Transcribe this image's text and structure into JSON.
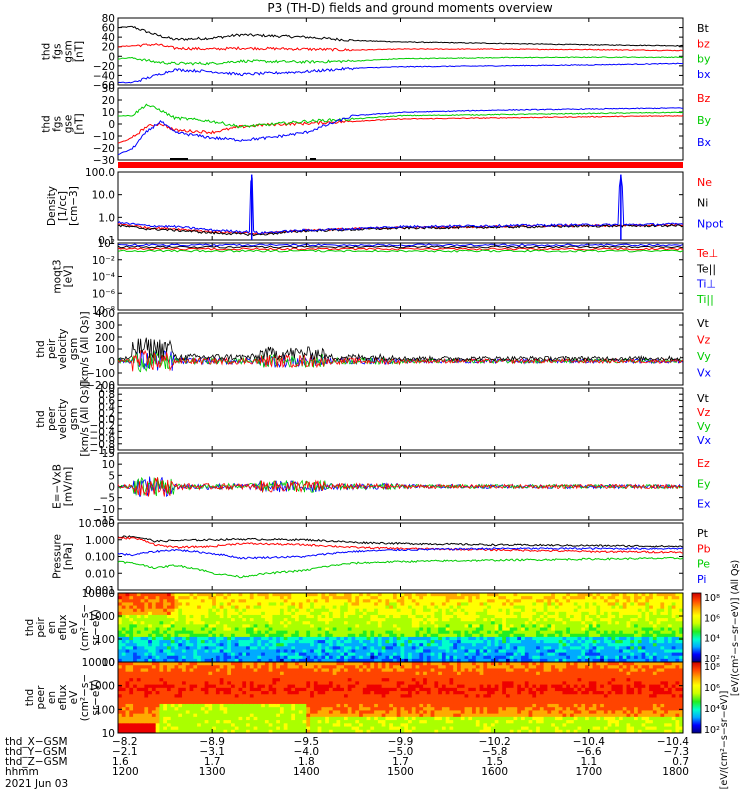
{
  "title": "P3 (TH-D) fields and ground moments overview",
  "colors": {
    "black": "#000000",
    "red": "#ff0000",
    "green": "#00cc00",
    "blue": "#0000ff"
  },
  "chart_data": [
    {
      "type": "line",
      "panel": "fgs-gsm",
      "ylabel_lines": [
        "thd",
        "fgs",
        "gsm",
        "[nT]"
      ],
      "ylim": [
        -60,
        80
      ],
      "yticks": [
        "80",
        "60",
        "40",
        "20",
        "0",
        "−20",
        "−40",
        "−60"
      ],
      "series": [
        {
          "name": "Bt",
          "color": "#000000",
          "x": [
            1200,
            1215,
            1240,
            1260,
            1300,
            1330,
            1400,
            1450,
            1500,
            1600,
            1700,
            1800
          ],
          "y": [
            60,
            62,
            45,
            35,
            38,
            45,
            40,
            33,
            30,
            27,
            24,
            22
          ]
        },
        {
          "name": "bz",
          "color": "#ff0000",
          "x": [
            1200,
            1215,
            1240,
            1260,
            1300,
            1330,
            1400,
            1450,
            1500,
            1600,
            1700,
            1800
          ],
          "y": [
            20,
            22,
            25,
            17,
            15,
            17,
            15,
            13,
            15,
            15,
            14,
            12
          ]
        },
        {
          "name": "by",
          "color": "#00cc00",
          "x": [
            1200,
            1215,
            1240,
            1260,
            1300,
            1330,
            1400,
            1450,
            1500,
            1600,
            1700,
            1800
          ],
          "y": [
            -5,
            -3,
            -12,
            -15,
            -15,
            -10,
            -12,
            -10,
            -5,
            -3,
            -2,
            -2
          ]
        },
        {
          "name": "bx",
          "color": "#0000ff",
          "x": [
            1200,
            1215,
            1240,
            1260,
            1300,
            1330,
            1400,
            1450,
            1500,
            1600,
            1700,
            1800
          ],
          "y": [
            -55,
            -55,
            -40,
            -28,
            -32,
            -38,
            -32,
            -25,
            -22,
            -20,
            -18,
            -15
          ]
        }
      ]
    },
    {
      "type": "line",
      "panel": "fgs-gse",
      "ylabel_lines": [
        "thd",
        "fgs",
        "gse",
        "[nT]"
      ],
      "ylim": [
        -35,
        30
      ],
      "yticks": [
        "30",
        "20",
        "10",
        "0",
        "−10",
        "−20",
        "−30"
      ],
      "series": [
        {
          "name": "Bz",
          "color": "#ff0000",
          "x": [
            1200,
            1215,
            1230,
            1245,
            1260,
            1300,
            1330,
            1360,
            1400,
            1450,
            1500,
            1600,
            1700,
            1800
          ],
          "y": [
            -20,
            -15,
            -5,
            -2,
            -8,
            -10,
            -5,
            -3,
            -2,
            0,
            2,
            3,
            4,
            5
          ]
        },
        {
          "name": "By",
          "color": "#00cc00",
          "x": [
            1200,
            1215,
            1230,
            1245,
            1260,
            1300,
            1330,
            1360,
            1400,
            1450,
            1500,
            1600,
            1700,
            1800
          ],
          "y": [
            5,
            5,
            15,
            10,
            3,
            0,
            -5,
            -3,
            0,
            2,
            5,
            6,
            7,
            8
          ]
        },
        {
          "name": "Bx",
          "color": "#0000ff",
          "x": [
            1200,
            1215,
            1230,
            1245,
            1260,
            1300,
            1330,
            1360,
            1400,
            1450,
            1500,
            1600,
            1700,
            1800
          ],
          "y": [
            -30,
            -25,
            -10,
            0,
            -10,
            -15,
            -17,
            -15,
            -10,
            5,
            8,
            10,
            11,
            12
          ]
        }
      ]
    },
    {
      "type": "line",
      "panel": "density",
      "ylabel_lines": [
        "Density",
        "[1/cc]",
        "[cm−3]"
      ],
      "scale": "log",
      "ylim": [
        0.1,
        200
      ],
      "yticks": [
        "100.0",
        "10.0",
        "1.0",
        "0.1"
      ],
      "series": [
        {
          "name": "Ne",
          "color": "#ff0000",
          "x": [
            1200,
            1230,
            1260,
            1300,
            1350,
            1400,
            1450,
            1500,
            1600,
            1700,
            1800
          ],
          "y": [
            0.6,
            0.4,
            0.35,
            0.25,
            0.2,
            0.3,
            0.35,
            0.4,
            0.45,
            0.5,
            0.55
          ]
        },
        {
          "name": "Ni",
          "color": "#000000",
          "x": [
            1200,
            1230,
            1260,
            1300,
            1350,
            1400,
            1450,
            1500,
            1600,
            1700,
            1800
          ],
          "y": [
            0.5,
            0.35,
            0.3,
            0.22,
            0.18,
            0.28,
            0.32,
            0.38,
            0.42,
            0.48,
            0.5
          ]
        },
        {
          "name": "Npot",
          "color": "#0000ff",
          "x": [
            1200,
            1230,
            1260,
            1300,
            1340,
            1342,
            1344,
            1350,
            1400,
            1450,
            1500,
            1600,
            1700,
            1732,
            1734,
            1736,
            1800
          ],
          "y": [
            0.7,
            0.5,
            0.45,
            0.3,
            0.25,
            150,
            0.25,
            0.22,
            0.3,
            0.35,
            0.45,
            0.5,
            0.55,
            0.55,
            150,
            0.55,
            0.6
          ]
        }
      ]
    },
    {
      "type": "line",
      "panel": "temperature",
      "ylabel_lines": [
        "moqt3",
        "[eV]"
      ],
      "scale": "log",
      "yticks": [
        "10²",
        "10⁻²",
        "10⁻⁴",
        "10⁻⁶",
        "10⁻⁸"
      ],
      "series": [
        {
          "name": "Te⊥",
          "color": "#ff0000"
        },
        {
          "name": "Te||",
          "color": "#000000"
        },
        {
          "name": "Ti⊥",
          "color": "#0000ff"
        },
        {
          "name": "Ti||",
          "color": "#00cc00"
        }
      ]
    },
    {
      "type": "line",
      "panel": "peir-velocity",
      "ylabel_lines": [
        "thd",
        "peir",
        "velocity",
        "gsm",
        "[km/s (All Qs)]"
      ],
      "ylim": [
        -200,
        400
      ],
      "yticks": [
        "400",
        "300",
        "200",
        "100",
        "0",
        "−100",
        "−200"
      ],
      "series": [
        {
          "name": "Vt",
          "color": "#000000"
        },
        {
          "name": "Vz",
          "color": "#ff0000"
        },
        {
          "name": "Vy",
          "color": "#00cc00"
        },
        {
          "name": "Vx",
          "color": "#0000ff"
        }
      ]
    },
    {
      "type": "line",
      "panel": "peer-velocity",
      "ylabel_lines": [
        "thd",
        "peer",
        "velocity",
        "gsm",
        "[km/s (All Qs)]"
      ],
      "ylim": [
        -1.0,
        1.0
      ],
      "yticks": [
        "1.0",
        "0.8",
        "0.6",
        "0.4",
        "0.2",
        "0.0",
        "−0.2",
        "−0.4",
        "−0.6",
        "−0.8",
        "−1.0"
      ],
      "series": [
        {
          "name": "Vt",
          "color": "#000000"
        },
        {
          "name": "Vz",
          "color": "#ff0000"
        },
        {
          "name": "Vy",
          "color": "#00cc00"
        },
        {
          "name": "Vx",
          "color": "#0000ff"
        }
      ]
    },
    {
      "type": "line",
      "panel": "efield",
      "ylabel_lines": [
        "E=−VxB",
        "[mV/m]"
      ],
      "ylim": [
        -15,
        15
      ],
      "yticks": [
        "15",
        "10",
        "5",
        "0",
        "−5",
        "−10",
        "−15"
      ],
      "series": [
        {
          "name": "Ez",
          "color": "#ff0000"
        },
        {
          "name": "Ey",
          "color": "#00cc00"
        },
        {
          "name": "Ex",
          "color": "#0000ff"
        }
      ]
    },
    {
      "type": "line",
      "panel": "pressure",
      "ylabel_lines": [
        "Pressure",
        "[nPa]"
      ],
      "scale": "log",
      "ylim": [
        0.001,
        10
      ],
      "yticks": [
        "10.000",
        "1.000",
        "0.100",
        "0.010",
        "0.001"
      ],
      "series": [
        {
          "name": "Pt",
          "color": "#000000",
          "x": [
            1200,
            1215,
            1240,
            1260,
            1300,
            1330,
            1400,
            1450,
            1500,
            1600,
            1700,
            1800
          ],
          "y": [
            1.5,
            1.6,
            0.8,
            0.9,
            1.0,
            1.1,
            1.0,
            0.7,
            0.6,
            0.5,
            0.45,
            0.4
          ]
        },
        {
          "name": "Pb",
          "color": "#ff0000",
          "x": [
            1200,
            1215,
            1240,
            1260,
            1300,
            1330,
            1400,
            1450,
            1500,
            1600,
            1700,
            1800
          ],
          "y": [
            1.2,
            1.3,
            0.5,
            0.35,
            0.4,
            0.6,
            0.5,
            0.35,
            0.3,
            0.25,
            0.2,
            0.18
          ]
        },
        {
          "name": "Pe",
          "color": "#00cc00",
          "x": [
            1200,
            1215,
            1240,
            1260,
            1300,
            1330,
            1400,
            1450,
            1500,
            1600,
            1700,
            1800
          ],
          "y": [
            0.05,
            0.04,
            0.02,
            0.03,
            0.01,
            0.006,
            0.015,
            0.04,
            0.05,
            0.06,
            0.07,
            0.08
          ]
        },
        {
          "name": "Pi",
          "color": "#0000ff",
          "x": [
            1200,
            1215,
            1240,
            1260,
            1300,
            1330,
            1400,
            1450,
            1500,
            1600,
            1700,
            1800
          ],
          "y": [
            0.15,
            0.12,
            0.2,
            0.25,
            0.15,
            0.08,
            0.1,
            0.2,
            0.25,
            0.3,
            0.3,
            0.3
          ]
        }
      ]
    },
    {
      "type": "heatmap",
      "panel": "peir-eflux",
      "ylabel_lines": [
        "thd",
        "peir",
        "en",
        "eflux",
        "eV",
        "(cm²−s−",
        "sr−eV)"
      ],
      "scale": "log",
      "ylim": [
        5,
        20000
      ],
      "yticks": [
        "10000",
        "1000",
        "100",
        "10"
      ]
    },
    {
      "type": "heatmap",
      "panel": "peer-eflux",
      "ylabel_lines": [
        "thd",
        "peer",
        "en",
        "eflux",
        "eV",
        "(cm²−s−",
        "sr−eV)"
      ],
      "scale": "log",
      "ylim": [
        5,
        20000
      ],
      "yticks": [
        "10000",
        "1000",
        "100",
        "10"
      ]
    }
  ],
  "colorbars": [
    {
      "ticks": [
        "10⁸",
        "10⁶",
        "10⁴",
        "10²"
      ],
      "label": "[eV/(cm²−s−sr−eV)] (All Qs)"
    },
    {
      "ticks": [
        "10⁸",
        "10⁶",
        "10⁴",
        "10²"
      ],
      "label": "[eV/(cm²−s−sr−eV)]"
    }
  ],
  "time_axis": {
    "ticks": [
      1200,
      1300,
      1400,
      1500,
      1600,
      1700,
      1800
    ],
    "rows": [
      {
        "label": "thd_X−GSM",
        "values": [
          "−8.2",
          "−8.9",
          "−9.5",
          "−9.9",
          "−10.2",
          "−10.4",
          "−10.4"
        ]
      },
      {
        "label": "thd_Y−GSM",
        "values": [
          "−2.1",
          "−3.1",
          "−4.0",
          "−5.0",
          "−5.8",
          "−6.6",
          "−7.3"
        ]
      },
      {
        "label": "thd_Z−GSM",
        "values": [
          "1.6",
          "1.7",
          "1.8",
          "1.7",
          "1.5",
          "1.1",
          "0.7"
        ]
      },
      {
        "label": "hhmm",
        "values": [
          "1200",
          "1300",
          "1400",
          "1500",
          "1600",
          "1700",
          "1800"
        ]
      }
    ],
    "date": "2021 Jun 03"
  }
}
